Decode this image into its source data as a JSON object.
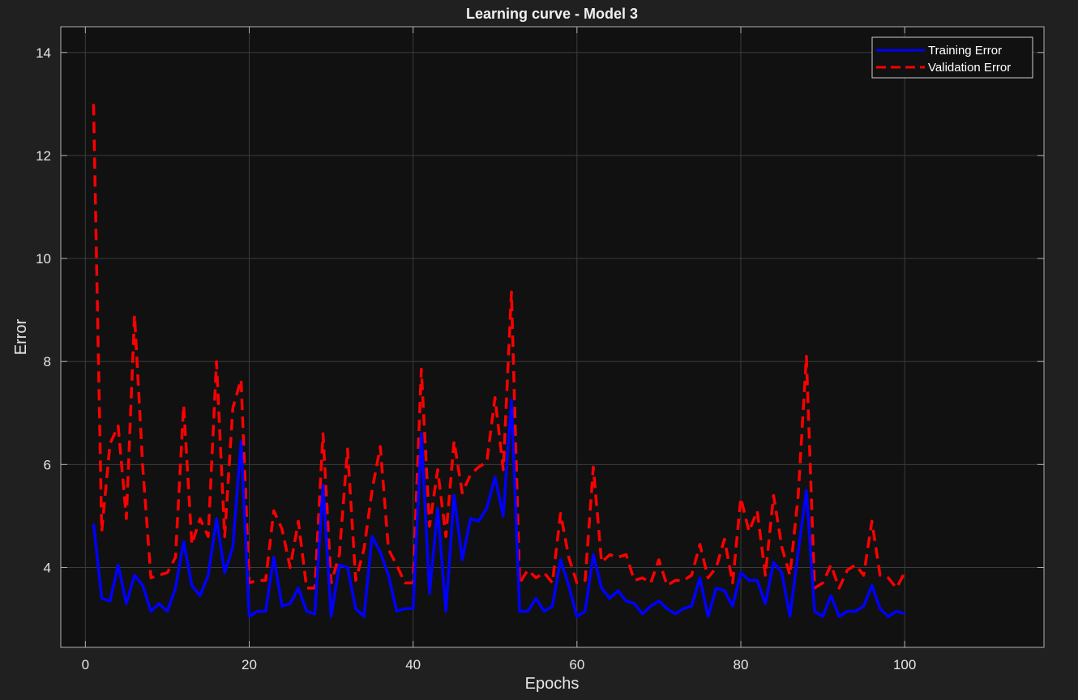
{
  "chart_data": {
    "type": "line",
    "title": "Learning curve - Model 3",
    "xlabel": "Epochs",
    "ylabel": "Error",
    "xlim": [
      -3,
      117
    ],
    "ylim": [
      2.45,
      14.5
    ],
    "xticks": [
      0,
      20,
      40,
      60,
      80,
      100
    ],
    "yticks": [
      4,
      6,
      8,
      10,
      12,
      14
    ],
    "xtick_labels": [
      "0",
      "20",
      "40",
      "60",
      "80",
      "100"
    ],
    "ytick_labels": [
      "4",
      "6",
      "8",
      "10",
      "12",
      "14"
    ],
    "grid": true,
    "legend_position": "top-right",
    "background": "#111111",
    "x": [
      1,
      2,
      3,
      4,
      5,
      6,
      7,
      8,
      9,
      10,
      11,
      12,
      13,
      14,
      15,
      16,
      17,
      18,
      19,
      20,
      21,
      22,
      23,
      24,
      25,
      26,
      27,
      28,
      29,
      30,
      31,
      32,
      33,
      34,
      35,
      36,
      37,
      38,
      39,
      40,
      41,
      42,
      43,
      44,
      45,
      46,
      47,
      48,
      49,
      50,
      51,
      52,
      53,
      54,
      55,
      56,
      57,
      58,
      59,
      60,
      61,
      62,
      63,
      64,
      65,
      66,
      67,
      68,
      69,
      70,
      71,
      72,
      73,
      74,
      75,
      76,
      77,
      78,
      79,
      80,
      81,
      82,
      83,
      84,
      85,
      86,
      87,
      88,
      89,
      90,
      91,
      92,
      93,
      94,
      95,
      96,
      97,
      98,
      99,
      100
    ],
    "series": [
      {
        "name": "Training Error",
        "color": "#0000ff",
        "style": "solid",
        "values": [
          4.85,
          3.4,
          3.35,
          4.05,
          3.3,
          3.85,
          3.65,
          3.15,
          3.3,
          3.15,
          3.6,
          4.5,
          3.65,
          3.45,
          3.85,
          4.95,
          3.9,
          4.4,
          6.45,
          3.05,
          3.15,
          3.15,
          4.2,
          3.25,
          3.3,
          3.6,
          3.15,
          3.1,
          5.6,
          3.05,
          4.05,
          4.0,
          3.2,
          3.05,
          4.6,
          4.3,
          3.85,
          3.15,
          3.2,
          3.2,
          6.6,
          3.5,
          5.15,
          3.15,
          5.4,
          4.15,
          4.95,
          4.9,
          5.15,
          5.75,
          5.0,
          7.25,
          3.15,
          3.15,
          3.4,
          3.15,
          3.25,
          4.15,
          3.65,
          3.05,
          3.15,
          4.25,
          3.6,
          3.4,
          3.55,
          3.35,
          3.3,
          3.1,
          3.25,
          3.35,
          3.2,
          3.1,
          3.2,
          3.25,
          3.8,
          3.05,
          3.6,
          3.55,
          3.25,
          3.9,
          3.75,
          3.75,
          3.3,
          4.1,
          3.9,
          3.05,
          4.3,
          5.5,
          3.15,
          3.05,
          3.45,
          3.05,
          3.15,
          3.15,
          3.25,
          3.65,
          3.2,
          3.05,
          3.15,
          3.1
        ]
      },
      {
        "name": "Validation Error",
        "color": "#ff0000",
        "style": "dashed",
        "values": [
          13.0,
          4.7,
          6.4,
          6.75,
          4.95,
          8.9,
          5.95,
          3.8,
          3.85,
          3.9,
          4.2,
          7.15,
          4.45,
          4.95,
          4.6,
          8.0,
          4.6,
          7.1,
          7.65,
          3.7,
          3.75,
          3.75,
          5.1,
          4.75,
          4.0,
          4.9,
          3.6,
          3.6,
          6.6,
          3.7,
          4.25,
          6.3,
          3.75,
          4.35,
          5.5,
          6.35,
          4.35,
          4.05,
          3.7,
          3.7,
          7.85,
          4.8,
          5.9,
          4.6,
          6.45,
          5.45,
          5.8,
          5.95,
          6.05,
          7.3,
          5.9,
          9.35,
          3.7,
          3.95,
          3.8,
          3.9,
          3.7,
          5.05,
          4.2,
          3.7,
          3.75,
          5.95,
          4.1,
          4.25,
          4.2,
          4.25,
          3.75,
          3.8,
          3.7,
          4.15,
          3.65,
          3.75,
          3.75,
          3.85,
          4.45,
          3.8,
          4.0,
          4.55,
          3.7,
          5.35,
          4.7,
          5.1,
          3.85,
          5.4,
          4.4,
          3.85,
          5.4,
          8.1,
          3.6,
          3.7,
          4.05,
          3.6,
          3.95,
          4.05,
          3.85,
          4.9,
          3.85,
          3.8,
          3.6,
          3.9
        ]
      }
    ]
  }
}
